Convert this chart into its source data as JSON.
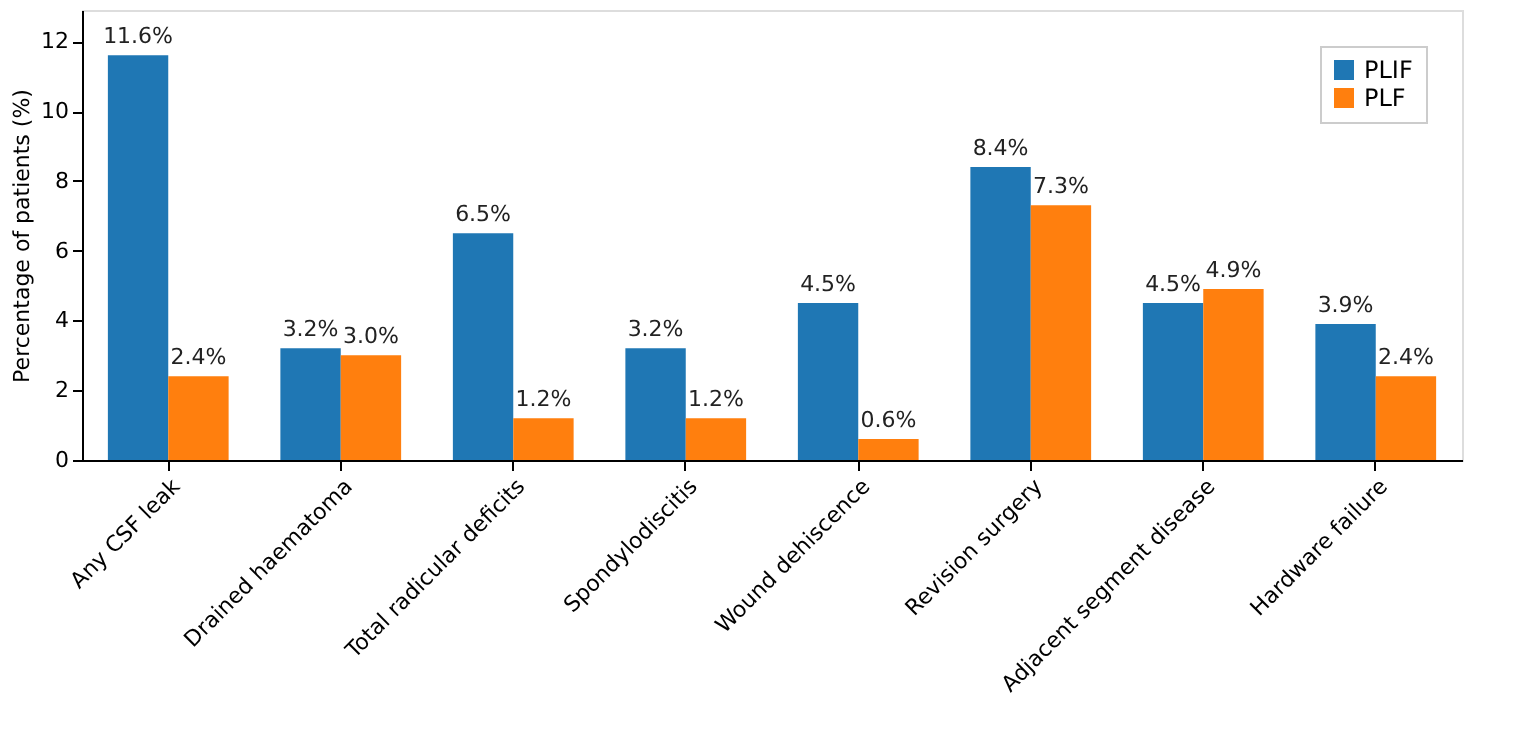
{
  "chart_data": {
    "type": "bar",
    "ylabel": "Percentage of patients (%)",
    "categories": [
      "Any CSF leak",
      "Drained haematoma",
      "Total radicular deficits",
      "Spondylodiscitis",
      "Wound dehiscence",
      "Revision surgery",
      "Adjacent segment disease",
      "Hardware failure"
    ],
    "series": [
      {
        "name": "PLIF",
        "color": "#1f77b4",
        "values": [
          11.6,
          3.2,
          6.5,
          3.2,
          4.5,
          8.4,
          4.5,
          3.9
        ],
        "value_labels": [
          "11.6%",
          "3.2%",
          "6.5%",
          "3.2%",
          "4.5%",
          "8.4%",
          "4.5%",
          "3.9%"
        ]
      },
      {
        "name": "PLF",
        "color": "#ff7f0e",
        "values": [
          2.4,
          3.0,
          1.2,
          1.2,
          0.6,
          7.3,
          4.9,
          2.4
        ],
        "value_labels": [
          "2.4%",
          "3.0%",
          "1.2%",
          "1.2%",
          "0.6%",
          "7.3%",
          "4.9%",
          "2.4%"
        ]
      }
    ],
    "ylim": [
      0,
      12.9
    ],
    "yticks": [
      0,
      2,
      4,
      6,
      8,
      10,
      12
    ],
    "grid": false,
    "legend": "top right"
  }
}
